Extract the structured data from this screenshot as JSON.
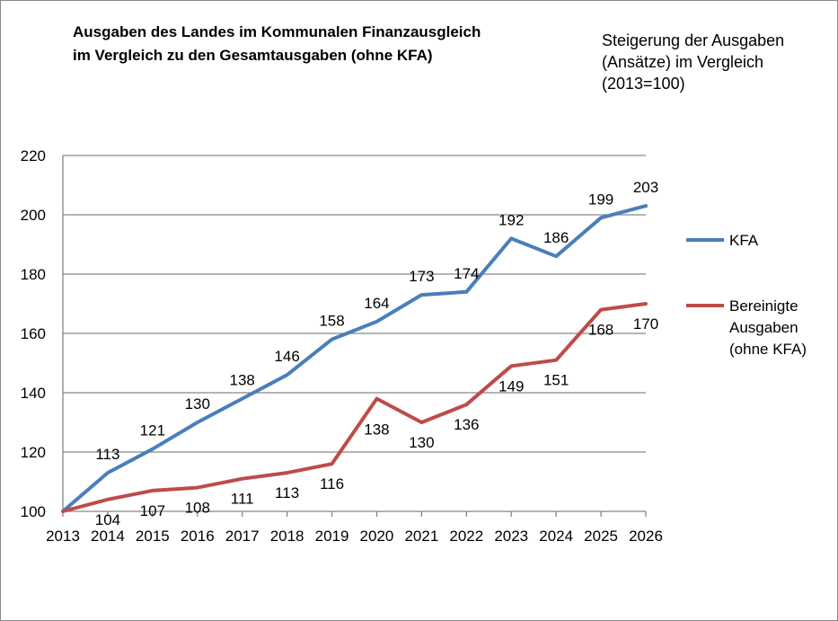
{
  "chart_data": {
    "type": "line",
    "title_lines": [
      "Ausgaben des Landes im Kommunalen Finanzausgleich",
      "im Vergleich zu den Gesamtausgaben (ohne KFA)"
    ],
    "subtitle_lines": [
      "Steigerung der Ausgaben",
      "(Ansätze) im Vergleich",
      "(2013=100)"
    ],
    "xlabel": "",
    "ylabel": "",
    "categories": [
      "2013",
      "2014",
      "2015",
      "2016",
      "2017",
      "2018",
      "2019",
      "2020",
      "2021",
      "2022",
      "2023",
      "2024",
      "2025",
      "2026"
    ],
    "ylim": [
      100,
      220
    ],
    "yticks": [
      100,
      120,
      140,
      160,
      180,
      200,
      220
    ],
    "grid": true,
    "legend_position": "right",
    "series": [
      {
        "name": "KFA",
        "legend_lines": [
          "KFA"
        ],
        "color": "#4a7ebb",
        "values": [
          100,
          113,
          121,
          130,
          138,
          146,
          158,
          164,
          173,
          174,
          192,
          186,
          199,
          203
        ],
        "labels": [
          "",
          "113",
          "121",
          "130",
          "138",
          "146",
          "158",
          "164",
          "173",
          "174",
          "192",
          "186",
          "199",
          "203"
        ]
      },
      {
        "name": "Bereinigte Ausgaben (ohne KFA)",
        "legend_lines": [
          "Bereinigte",
          "Ausgaben",
          "(ohne KFA)"
        ],
        "color": "#be4b48",
        "values": [
          100,
          104,
          107,
          108,
          111,
          113,
          116,
          138,
          130,
          136,
          149,
          151,
          168,
          170
        ],
        "labels": [
          "",
          "104",
          "107",
          "108",
          "111",
          "113",
          "116",
          "138",
          "130",
          "136",
          "149",
          "151",
          "168",
          "170"
        ]
      }
    ]
  }
}
